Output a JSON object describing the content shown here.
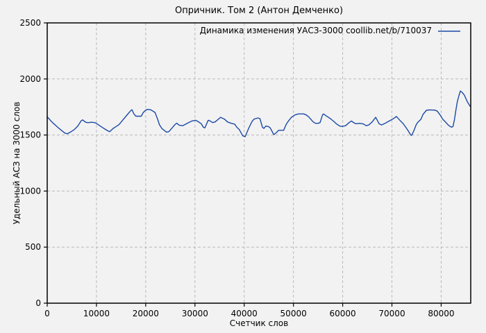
{
  "chart_data": {
    "type": "line",
    "title": "Опричник. Том 2 (Антон Демченко)",
    "xlabel": "Счетчик слов",
    "ylabel": "Удельный АСЗ на 3000 слов",
    "xlim": [
      0,
      86000
    ],
    "ylim": [
      0,
      2500
    ],
    "x_ticks": [
      0,
      10000,
      20000,
      30000,
      40000,
      50000,
      60000,
      70000,
      80000
    ],
    "y_ticks": [
      0,
      500,
      1000,
      1500,
      2000,
      2500
    ],
    "grid": true,
    "grid_style": "dashed",
    "legend_position": "top-right-inside",
    "background_color": "#f2f2f2",
    "grid_color": "#b9b9b9",
    "frame_color": "#000000",
    "line_color": "#1b49a5",
    "series": [
      {
        "name": "Динамика изменения УАСЗ-3000 coollib.net/b/710037",
        "color": "#1b49a5",
        "points": [
          [
            0,
            1662
          ],
          [
            1000,
            1614
          ],
          [
            2400,
            1559
          ],
          [
            3600,
            1517
          ],
          [
            4100,
            1511
          ],
          [
            4800,
            1528
          ],
          [
            5500,
            1548
          ],
          [
            6200,
            1579
          ],
          [
            6900,
            1627
          ],
          [
            7200,
            1635
          ],
          [
            7800,
            1614
          ],
          [
            8300,
            1610
          ],
          [
            9000,
            1614
          ],
          [
            9700,
            1610
          ],
          [
            10100,
            1600
          ],
          [
            10800,
            1579
          ],
          [
            11500,
            1559
          ],
          [
            12300,
            1538
          ],
          [
            12700,
            1530
          ],
          [
            13400,
            1559
          ],
          [
            13900,
            1573
          ],
          [
            14600,
            1594
          ],
          [
            15300,
            1631
          ],
          [
            15700,
            1652
          ],
          [
            16300,
            1683
          ],
          [
            16900,
            1715
          ],
          [
            17200,
            1726
          ],
          [
            17600,
            1689
          ],
          [
            18000,
            1668
          ],
          [
            19100,
            1668
          ],
          [
            19500,
            1701
          ],
          [
            20000,
            1722
          ],
          [
            20300,
            1728
          ],
          [
            20900,
            1727
          ],
          [
            21400,
            1715
          ],
          [
            21900,
            1701
          ],
          [
            22400,
            1643
          ],
          [
            22800,
            1591
          ],
          [
            23300,
            1557
          ],
          [
            23800,
            1540
          ],
          [
            24200,
            1526
          ],
          [
            24700,
            1530
          ],
          [
            25400,
            1565
          ],
          [
            25900,
            1591
          ],
          [
            26300,
            1606
          ],
          [
            26800,
            1588
          ],
          [
            27500,
            1583
          ],
          [
            28700,
            1611
          ],
          [
            29400,
            1625
          ],
          [
            30100,
            1632
          ],
          [
            30600,
            1621
          ],
          [
            31300,
            1600
          ],
          [
            31700,
            1569
          ],
          [
            32000,
            1563
          ],
          [
            32700,
            1632
          ],
          [
            33100,
            1625
          ],
          [
            33600,
            1611
          ],
          [
            34100,
            1617
          ],
          [
            35200,
            1658
          ],
          [
            36000,
            1642
          ],
          [
            36600,
            1617
          ],
          [
            37400,
            1604
          ],
          [
            38100,
            1596
          ],
          [
            38500,
            1569
          ],
          [
            39000,
            1549
          ],
          [
            39700,
            1493
          ],
          [
            40200,
            1485
          ],
          [
            40900,
            1559
          ],
          [
            41600,
            1621
          ],
          [
            42000,
            1642
          ],
          [
            42800,
            1652
          ],
          [
            43200,
            1646
          ],
          [
            43700,
            1569
          ],
          [
            44000,
            1559
          ],
          [
            44400,
            1580
          ],
          [
            44900,
            1576
          ],
          [
            45300,
            1563
          ],
          [
            46000,
            1503
          ],
          [
            46500,
            1520
          ],
          [
            47000,
            1542
          ],
          [
            48000,
            1542
          ],
          [
            48600,
            1600
          ],
          [
            49100,
            1632
          ],
          [
            49600,
            1658
          ],
          [
            50300,
            1679
          ],
          [
            51000,
            1688
          ],
          [
            52100,
            1688
          ],
          [
            52600,
            1679
          ],
          [
            53100,
            1662
          ],
          [
            53500,
            1642
          ],
          [
            54000,
            1617
          ],
          [
            54500,
            1604
          ],
          [
            55000,
            1604
          ],
          [
            55400,
            1611
          ],
          [
            55900,
            1679
          ],
          [
            56100,
            1688
          ],
          [
            56600,
            1672
          ],
          [
            57100,
            1658
          ],
          [
            57500,
            1646
          ],
          [
            58200,
            1621
          ],
          [
            58700,
            1600
          ],
          [
            59400,
            1580
          ],
          [
            59900,
            1576
          ],
          [
            60600,
            1583
          ],
          [
            61300,
            1611
          ],
          [
            61800,
            1625
          ],
          [
            62200,
            1611
          ],
          [
            62700,
            1600
          ],
          [
            63400,
            1604
          ],
          [
            64100,
            1600
          ],
          [
            64800,
            1583
          ],
          [
            65300,
            1590
          ],
          [
            66000,
            1617
          ],
          [
            66700,
            1658
          ],
          [
            67400,
            1600
          ],
          [
            67900,
            1590
          ],
          [
            68600,
            1604
          ],
          [
            69300,
            1621
          ],
          [
            70000,
            1638
          ],
          [
            70700,
            1658
          ],
          [
            70900,
            1666
          ],
          [
            71600,
            1632
          ],
          [
            72300,
            1600
          ],
          [
            72800,
            1569
          ],
          [
            73300,
            1538
          ],
          [
            73800,
            1501
          ],
          [
            74000,
            1497
          ],
          [
            74500,
            1542
          ],
          [
            74900,
            1590
          ],
          [
            75200,
            1611
          ],
          [
            75900,
            1642
          ],
          [
            76300,
            1683
          ],
          [
            77000,
            1720
          ],
          [
            77500,
            1724
          ],
          [
            78700,
            1722
          ],
          [
            79200,
            1713
          ],
          [
            79900,
            1672
          ],
          [
            80300,
            1642
          ],
          [
            81000,
            1611
          ],
          [
            81400,
            1590
          ],
          [
            81700,
            1580
          ],
          [
            82100,
            1569
          ],
          [
            82400,
            1576
          ],
          [
            82700,
            1640
          ],
          [
            83000,
            1724
          ],
          [
            83300,
            1800
          ],
          [
            83600,
            1850
          ],
          [
            83900,
            1893
          ],
          [
            84300,
            1878
          ],
          [
            84700,
            1856
          ],
          [
            85000,
            1827
          ],
          [
            85400,
            1790
          ],
          [
            85900,
            1755
          ]
        ]
      }
    ]
  }
}
